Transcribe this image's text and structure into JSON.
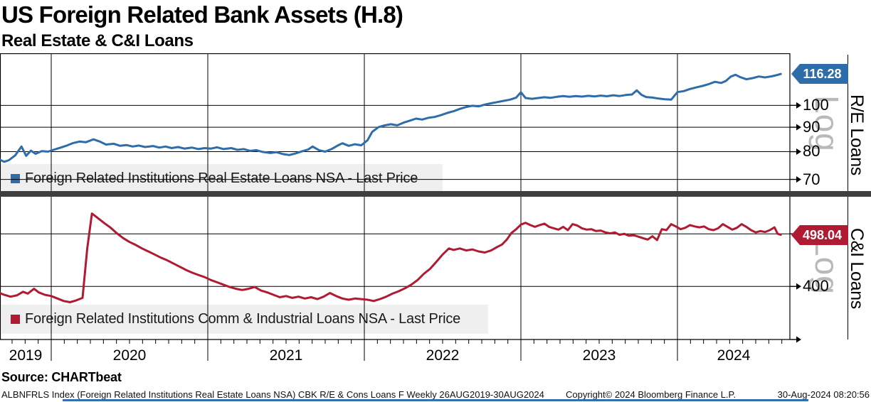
{
  "header": {
    "title": "US Foreign Related Bank Assets (H.8)",
    "subtitle": "Real Estate & C&I Loans"
  },
  "source_line": "Source: CHARTbeat",
  "footer": {
    "description": "ALBNFRLS Index (Foreign Related Institutions Real Estate Loans NSA) CBK R/E & Cons Loans F  Weekly 26AUG2019-30AUG2024",
    "copyright": "Copyright© 2024 Bloomberg Finance L.P.",
    "timestamp": "30-Aug-2024 08:20:56"
  },
  "colors": {
    "re_line": "#2e6da9",
    "ci_line": "#b11a33",
    "grid": "#000000",
    "legend_bg": "#efefef",
    "separator": "#3f3f3f",
    "log_watermark": "#b9b9b9",
    "flag_text": "#ffffff"
  },
  "x_axis": {
    "labels": [
      "2019",
      "2020",
      "2021",
      "2022",
      "2023",
      "2024"
    ],
    "gridline_years": [
      2020,
      2021,
      2022,
      2023,
      2024
    ],
    "xlim": [
      2019.673,
      2024.718
    ],
    "frequency": "Weekly",
    "range": "26AUG2019-30AUG2024"
  },
  "chart_data": [
    {
      "type": "line",
      "panel": "top",
      "legend": "Foreign Related Institutions Real Estate Loans NSA - Last Price",
      "axis_label": "R/E Loans",
      "scale_label": "Log",
      "color": "#2e6da9",
      "last_price": 116.28,
      "flag_label": "116.28",
      "ytick_labels": [
        "100",
        "90",
        "80",
        "70"
      ],
      "ytick_values": [
        100,
        90,
        80,
        70
      ],
      "gridline_values": [
        100,
        90,
        80,
        70
      ],
      "ylim": [
        66.4,
        128.3
      ],
      "points": [
        [
          2019.67,
          77.0
        ],
        [
          2019.7,
          76.2
        ],
        [
          2019.73,
          76.8
        ],
        [
          2019.77,
          78.6
        ],
        [
          2019.81,
          82.0
        ],
        [
          2019.84,
          78.4
        ],
        [
          2019.87,
          80.4
        ],
        [
          2019.9,
          79.2
        ],
        [
          2019.94,
          80.2
        ],
        [
          2019.98,
          80.0
        ],
        [
          2020.02,
          80.8
        ],
        [
          2020.06,
          81.6
        ],
        [
          2020.1,
          82.4
        ],
        [
          2020.14,
          83.4
        ],
        [
          2020.18,
          84.0
        ],
        [
          2020.22,
          83.7
        ],
        [
          2020.27,
          84.9
        ],
        [
          2020.31,
          84.0
        ],
        [
          2020.35,
          82.8
        ],
        [
          2020.4,
          83.1
        ],
        [
          2020.44,
          82.3
        ],
        [
          2020.48,
          82.6
        ],
        [
          2020.52,
          82.0
        ],
        [
          2020.56,
          82.4
        ],
        [
          2020.6,
          81.8
        ],
        [
          2020.65,
          82.2
        ],
        [
          2020.69,
          81.6
        ],
        [
          2020.73,
          82.0
        ],
        [
          2020.77,
          81.4
        ],
        [
          2020.81,
          81.8
        ],
        [
          2020.85,
          81.2
        ],
        [
          2020.9,
          81.6
        ],
        [
          2020.94,
          81.0
        ],
        [
          2020.98,
          81.4
        ],
        [
          2021.02,
          81.2
        ],
        [
          2021.06,
          81.7
        ],
        [
          2021.1,
          81.0
        ],
        [
          2021.15,
          81.4
        ],
        [
          2021.19,
          80.7
        ],
        [
          2021.23,
          81.0
        ],
        [
          2021.27,
          80.3
        ],
        [
          2021.31,
          80.6
        ],
        [
          2021.35,
          79.9
        ],
        [
          2021.4,
          79.5
        ],
        [
          2021.44,
          79.8
        ],
        [
          2021.48,
          79.1
        ],
        [
          2021.52,
          78.7
        ],
        [
          2021.56,
          79.3
        ],
        [
          2021.6,
          80.1
        ],
        [
          2021.64,
          80.8
        ],
        [
          2021.67,
          82.0
        ],
        [
          2021.71,
          80.6
        ],
        [
          2021.75,
          80.0
        ],
        [
          2021.79,
          81.0
        ],
        [
          2021.83,
          82.4
        ],
        [
          2021.86,
          83.3
        ],
        [
          2021.9,
          82.3
        ],
        [
          2021.94,
          82.9
        ],
        [
          2021.98,
          82.5
        ],
        [
          2022.02,
          84.5
        ],
        [
          2022.05,
          88.0
        ],
        [
          2022.09,
          90.0
        ],
        [
          2022.13,
          90.8
        ],
        [
          2022.17,
          91.3
        ],
        [
          2022.21,
          90.8
        ],
        [
          2022.25,
          92.0
        ],
        [
          2022.29,
          92.9
        ],
        [
          2022.33,
          93.8
        ],
        [
          2022.37,
          93.4
        ],
        [
          2022.41,
          94.2
        ],
        [
          2022.45,
          94.6
        ],
        [
          2022.49,
          95.4
        ],
        [
          2022.53,
          96.4
        ],
        [
          2022.57,
          97.2
        ],
        [
          2022.61,
          98.3
        ],
        [
          2022.65,
          99.2
        ],
        [
          2022.69,
          99.8
        ],
        [
          2022.73,
          99.5
        ],
        [
          2022.77,
          100.4
        ],
        [
          2022.81,
          101.0
        ],
        [
          2022.85,
          101.6
        ],
        [
          2022.89,
          102.2
        ],
        [
          2022.93,
          102.8
        ],
        [
          2022.97,
          103.8
        ],
        [
          2023.0,
          106.5
        ],
        [
          2023.03,
          103.6
        ],
        [
          2023.07,
          103.2
        ],
        [
          2023.11,
          103.6
        ],
        [
          2023.15,
          104.0
        ],
        [
          2023.19,
          103.7
        ],
        [
          2023.23,
          104.2
        ],
        [
          2023.27,
          104.6
        ],
        [
          2023.31,
          104.2
        ],
        [
          2023.35,
          104.6
        ],
        [
          2023.39,
          104.3
        ],
        [
          2023.43,
          104.7
        ],
        [
          2023.47,
          104.4
        ],
        [
          2023.51,
          104.8
        ],
        [
          2023.55,
          104.5
        ],
        [
          2023.59,
          105.0
        ],
        [
          2023.63,
          104.6
        ],
        [
          2023.67,
          105.1
        ],
        [
          2023.71,
          105.4
        ],
        [
          2023.74,
          107.5
        ],
        [
          2023.77,
          105.2
        ],
        [
          2023.8,
          104.1
        ],
        [
          2023.84,
          103.8
        ],
        [
          2023.88,
          103.3
        ],
        [
          2023.92,
          103.0
        ],
        [
          2023.96,
          102.8
        ],
        [
          2024.0,
          106.6
        ],
        [
          2024.04,
          107.1
        ],
        [
          2024.08,
          108.2
        ],
        [
          2024.12,
          109.0
        ],
        [
          2024.16,
          109.8
        ],
        [
          2024.2,
          110.8
        ],
        [
          2024.24,
          112.0
        ],
        [
          2024.28,
          111.4
        ],
        [
          2024.31,
          112.5
        ],
        [
          2024.34,
          114.8
        ],
        [
          2024.37,
          115.9
        ],
        [
          2024.4,
          114.6
        ],
        [
          2024.44,
          113.4
        ],
        [
          2024.48,
          114.0
        ],
        [
          2024.52,
          114.9
        ],
        [
          2024.56,
          114.4
        ],
        [
          2024.6,
          115.0
        ],
        [
          2024.63,
          115.6
        ],
        [
          2024.66,
          116.28
        ]
      ]
    },
    {
      "type": "line",
      "panel": "bottom",
      "legend": "Foreign Related Institutions Comm & Industrial Loans NSA - Last Price",
      "axis_label": "C&I Loans",
      "scale_label": "Log",
      "color": "#b11a33",
      "last_price": 498.04,
      "flag_label": "498.04",
      "ytick_labels": [
        "400"
      ],
      "ytick_values": [
        400
      ],
      "gridline_values": [
        500,
        400
      ],
      "ylim": [
        319.3,
        580
      ],
      "points": [
        [
          2019.67,
          389
        ],
        [
          2019.7,
          386
        ],
        [
          2019.74,
          383
        ],
        [
          2019.78,
          385
        ],
        [
          2019.82,
          391
        ],
        [
          2019.85,
          388
        ],
        [
          2019.89,
          396
        ],
        [
          2019.92,
          390
        ],
        [
          2019.96,
          386
        ],
        [
          2020.0,
          384
        ],
        [
          2020.04,
          380
        ],
        [
          2020.08,
          376
        ],
        [
          2020.12,
          374
        ],
        [
          2020.16,
          377
        ],
        [
          2020.2,
          381
        ],
        [
          2020.23,
          470
        ],
        [
          2020.26,
          545
        ],
        [
          2020.3,
          534
        ],
        [
          2020.34,
          523
        ],
        [
          2020.38,
          513
        ],
        [
          2020.42,
          501
        ],
        [
          2020.46,
          491
        ],
        [
          2020.5,
          483
        ],
        [
          2020.54,
          477
        ],
        [
          2020.58,
          470
        ],
        [
          2020.62,
          464
        ],
        [
          2020.66,
          458
        ],
        [
          2020.7,
          452
        ],
        [
          2020.74,
          447
        ],
        [
          2020.78,
          441
        ],
        [
          2020.82,
          435
        ],
        [
          2020.86,
          429
        ],
        [
          2020.9,
          424
        ],
        [
          2020.94,
          420
        ],
        [
          2020.98,
          416
        ],
        [
          2021.02,
          411
        ],
        [
          2021.06,
          407
        ],
        [
          2021.1,
          403
        ],
        [
          2021.14,
          399
        ],
        [
          2021.18,
          396
        ],
        [
          2021.22,
          394
        ],
        [
          2021.26,
          396
        ],
        [
          2021.3,
          399
        ],
        [
          2021.34,
          393
        ],
        [
          2021.38,
          390
        ],
        [
          2021.42,
          386
        ],
        [
          2021.46,
          382
        ],
        [
          2021.5,
          384
        ],
        [
          2021.54,
          381
        ],
        [
          2021.58,
          383
        ],
        [
          2021.62,
          380
        ],
        [
          2021.66,
          382
        ],
        [
          2021.7,
          379
        ],
        [
          2021.74,
          383
        ],
        [
          2021.78,
          389
        ],
        [
          2021.82,
          384
        ],
        [
          2021.86,
          380
        ],
        [
          2021.9,
          378
        ],
        [
          2021.94,
          380
        ],
        [
          2021.98,
          379
        ],
        [
          2022.02,
          378
        ],
        [
          2022.06,
          376
        ],
        [
          2022.1,
          379
        ],
        [
          2022.14,
          383
        ],
        [
          2022.18,
          388
        ],
        [
          2022.22,
          392
        ],
        [
          2022.26,
          397
        ],
        [
          2022.3,
          403
        ],
        [
          2022.34,
          411
        ],
        [
          2022.38,
          422
        ],
        [
          2022.42,
          431
        ],
        [
          2022.46,
          444
        ],
        [
          2022.5,
          458
        ],
        [
          2022.54,
          470
        ],
        [
          2022.57,
          467
        ],
        [
          2022.61,
          470
        ],
        [
          2022.65,
          466
        ],
        [
          2022.69,
          468
        ],
        [
          2022.73,
          464
        ],
        [
          2022.77,
          462
        ],
        [
          2022.81,
          466
        ],
        [
          2022.85,
          473
        ],
        [
          2022.88,
          478
        ],
        [
          2022.91,
          488
        ],
        [
          2022.94,
          502
        ],
        [
          2022.97,
          510
        ],
        [
          2023.0,
          520
        ],
        [
          2023.03,
          524
        ],
        [
          2023.06,
          519
        ],
        [
          2023.09,
          515
        ],
        [
          2023.12,
          519
        ],
        [
          2023.15,
          522
        ],
        [
          2023.18,
          515
        ],
        [
          2023.21,
          512
        ],
        [
          2023.24,
          509
        ],
        [
          2023.27,
          515
        ],
        [
          2023.3,
          508
        ],
        [
          2023.33,
          521
        ],
        [
          2023.36,
          518
        ],
        [
          2023.39,
          512
        ],
        [
          2023.42,
          509
        ],
        [
          2023.45,
          510
        ],
        [
          2023.48,
          506
        ],
        [
          2023.51,
          507
        ],
        [
          2023.54,
          503
        ],
        [
          2023.57,
          501
        ],
        [
          2023.6,
          503
        ],
        [
          2023.63,
          498
        ],
        [
          2023.66,
          500
        ],
        [
          2023.69,
          496
        ],
        [
          2023.72,
          497
        ],
        [
          2023.75,
          494
        ],
        [
          2023.78,
          491
        ],
        [
          2023.81,
          488
        ],
        [
          2023.84,
          495
        ],
        [
          2023.87,
          487
        ],
        [
          2023.9,
          510
        ],
        [
          2023.93,
          508
        ],
        [
          2023.96,
          521
        ],
        [
          2023.99,
          516
        ],
        [
          2024.02,
          510
        ],
        [
          2024.05,
          513
        ],
        [
          2024.08,
          519
        ],
        [
          2024.11,
          516
        ],
        [
          2024.14,
          514
        ],
        [
          2024.17,
          516
        ],
        [
          2024.2,
          510
        ],
        [
          2024.23,
          508
        ],
        [
          2024.26,
          512
        ],
        [
          2024.29,
          521
        ],
        [
          2024.32,
          515
        ],
        [
          2024.35,
          509
        ],
        [
          2024.38,
          513
        ],
        [
          2024.41,
          521
        ],
        [
          2024.44,
          515
        ],
        [
          2024.47,
          508
        ],
        [
          2024.5,
          503
        ],
        [
          2024.53,
          506
        ],
        [
          2024.56,
          504
        ],
        [
          2024.59,
          508
        ],
        [
          2024.62,
          514
        ],
        [
          2024.64,
          500
        ],
        [
          2024.66,
          498.04
        ]
      ]
    }
  ]
}
